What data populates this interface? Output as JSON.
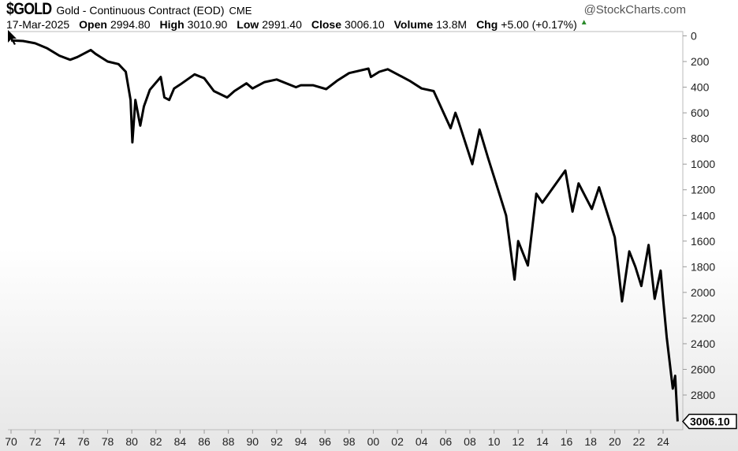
{
  "header": {
    "symbol": "$GOLD",
    "description": "Gold - Continuous Contract (EOD)",
    "exchange": "CME",
    "brand": "@StockCharts.com",
    "date": "17-Mar-2025",
    "open_label": "Open",
    "open": "2994.80",
    "high_label": "High",
    "high": "3010.90",
    "low_label": "Low",
    "low": "2991.40",
    "close_label": "Close",
    "close": "3006.10",
    "volume_label": "Volume",
    "volume": "13.8M",
    "chg_label": "Chg",
    "chg": "+5.00 (+0.17%)",
    "chg_icon": "triangle-up-icon"
  },
  "chart_data": {
    "type": "line",
    "y_inverted": true,
    "ylim": [
      0,
      3000
    ],
    "yticks": [
      0,
      200,
      400,
      600,
      800,
      1000,
      1200,
      1400,
      1600,
      1800,
      2000,
      2200,
      2400,
      2600,
      2800
    ],
    "xlim": [
      1970,
      2025.2
    ],
    "xtick_labels": [
      "70",
      "72",
      "74",
      "76",
      "78",
      "80",
      "82",
      "84",
      "86",
      "88",
      "90",
      "92",
      "94",
      "96",
      "98",
      "00",
      "02",
      "04",
      "06",
      "08",
      "10",
      "12",
      "14",
      "16",
      "18",
      "20",
      "22",
      "24"
    ],
    "last_value_label": "3006.10",
    "line_color": "#000000",
    "grid": false,
    "series": [
      {
        "x": [
          1970,
          1971,
          1972,
          1973,
          1974,
          1974.9,
          1975.5,
          1976.6,
          1977,
          1978,
          1978.9,
          1979.5,
          1979.9,
          1980.05,
          1980.3,
          1980.7,
          1981,
          1981.5,
          1982.4,
          1982.7,
          1983.1,
          1983.5,
          1984,
          1985.2,
          1986,
          1986.8,
          1987.9,
          1988.5,
          1989.5,
          1990,
          1991,
          1992,
          1993.6,
          1994,
          1995,
          1996.1,
          1997,
          1998,
          1999.6,
          1999.8,
          2000.5,
          2001.2,
          2002,
          2003,
          2004,
          2005,
          2006.4,
          2006.8,
          2007,
          2008.2,
          2008.8,
          2009.5,
          2010,
          2010.5,
          2011,
          2011.7,
          2012,
          2012.8,
          2013.5,
          2014,
          2015.9,
          2016.5,
          2017,
          2018.1,
          2018.7,
          2019.5,
          2020,
          2020.6,
          2021.2,
          2021.7,
          2022.2,
          2022.8,
          2023.3,
          2023.8,
          2024,
          2024.3,
          2024.8,
          2025.0,
          2025.2
        ],
        "values": [
          35,
          40,
          58,
          97,
          154,
          186,
          165,
          110,
          140,
          200,
          220,
          280,
          500,
          830,
          500,
          700,
          550,
          420,
          320,
          480,
          500,
          410,
          380,
          300,
          330,
          430,
          480,
          430,
          370,
          410,
          360,
          340,
          400,
          385,
          385,
          415,
          350,
          290,
          255,
          320,
          280,
          260,
          300,
          350,
          410,
          430,
          720,
          600,
          650,
          1000,
          730,
          950,
          1100,
          1250,
          1400,
          1900,
          1600,
          1790,
          1230,
          1300,
          1050,
          1370,
          1150,
          1350,
          1180,
          1420,
          1570,
          2070,
          1680,
          1800,
          1950,
          1630,
          2050,
          1830,
          2050,
          2350,
          2750,
          2650,
          3006.1
        ]
      }
    ]
  }
}
